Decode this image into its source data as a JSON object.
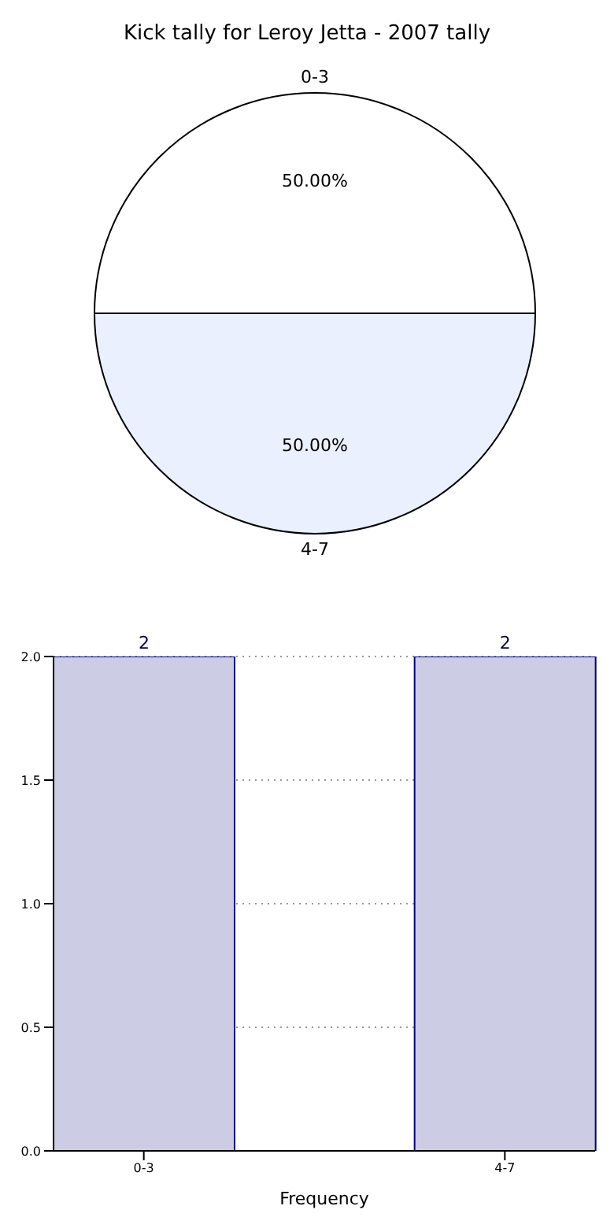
{
  "chart_data": [
    {
      "type": "pie",
      "title": "Kick tally for Leroy Jetta - 2007 tally",
      "categories": [
        "0-3",
        "4-7"
      ],
      "values": [
        50,
        50
      ],
      "colors": [
        "#ffffff",
        "#eaf0fe"
      ],
      "value_labels": [
        "50.00%",
        "50.00%"
      ]
    },
    {
      "type": "bar",
      "xlabel": "Frequency",
      "categories": [
        "0-3",
        null,
        "4-7"
      ],
      "values": [
        2,
        null,
        2
      ],
      "color": "#ccccE4",
      "ylim": [
        0,
        2
      ],
      "yticks": [
        {
          "value": 0,
          "label": "0.0"
        },
        {
          "value": 0.5,
          "label": "0.5"
        },
        {
          "value": 1,
          "label": "1.0"
        },
        {
          "value": 1.5,
          "label": "1.5"
        },
        {
          "value": 2,
          "label": "2.0"
        }
      ],
      "grid": true,
      "data_labels": true
    }
  ]
}
